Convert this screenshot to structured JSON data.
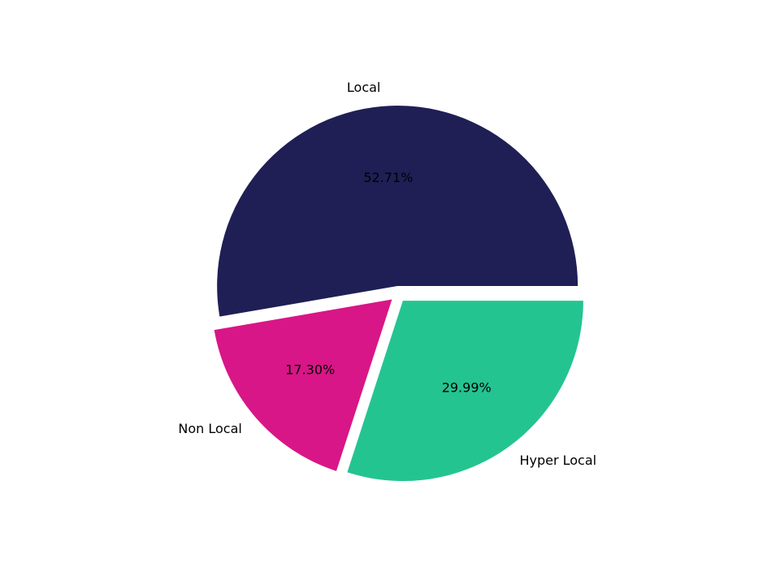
{
  "chart_data": {
    "type": "pie",
    "categories": [
      "Local",
      "Non Local",
      "Hyper Local"
    ],
    "values": [
      52.71,
      17.3,
      29.99
    ],
    "value_labels": [
      "52.71%",
      "17.30%",
      "29.99%"
    ],
    "colors": [
      "#1f1f55",
      "#d81687",
      "#24c491"
    ]
  }
}
